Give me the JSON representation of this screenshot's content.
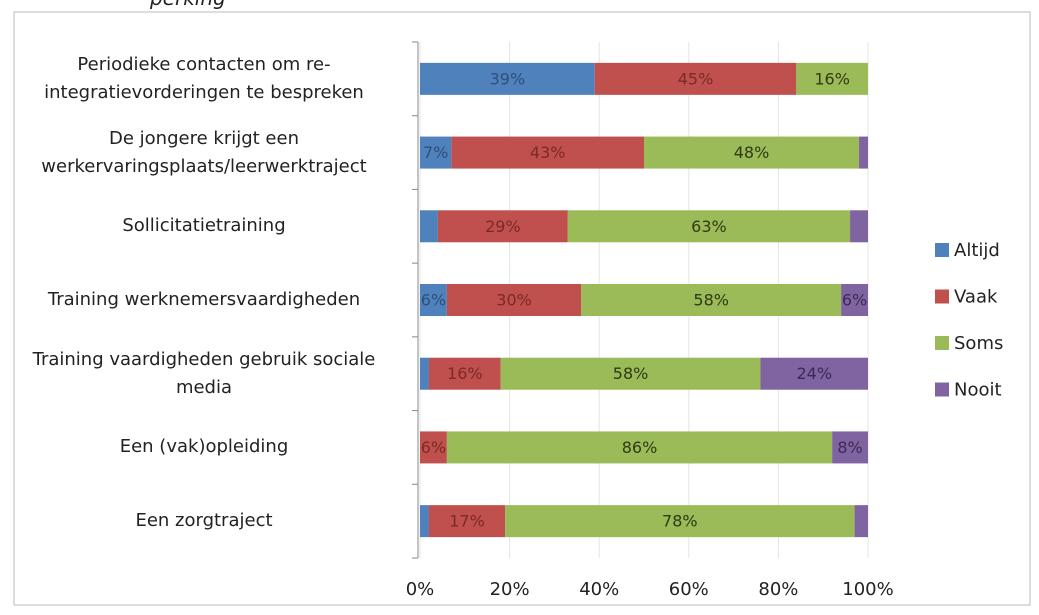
{
  "chart_data": {
    "type": "stacked-bar-horizontal",
    "title": "perking",
    "categories": [
      "Periodieke contacten om re-integratievorderingen te bespreken",
      "De jongere krijgt een werkervaringsplaats/leerwerktraject",
      "Sollicitatietraining",
      "Training werknemersvaardigheden",
      "Training vaardigheden gebruik sociale media",
      "Een (vak)opleiding",
      "Een zorgtraject"
    ],
    "series": [
      {
        "name": "Altijd",
        "color": "#4f81bd",
        "label_color": "#2f4f7a",
        "values": [
          39,
          7,
          4,
          6,
          2,
          0,
          2
        ],
        "value_labels": [
          "39%",
          "7%",
          null,
          "6%",
          null,
          null,
          null
        ]
      },
      {
        "name": "Vaak",
        "color": "#c0504d",
        "label_color": "#7a2a28",
        "values": [
          45,
          43,
          29,
          30,
          16,
          6,
          17
        ],
        "value_labels": [
          "45%",
          "43%",
          "29%",
          "30%",
          "16%",
          "6%",
          "17%"
        ]
      },
      {
        "name": "Soms",
        "color": "#9bbb59",
        "label_color": "#2f3a14",
        "values": [
          16,
          48,
          63,
          58,
          58,
          86,
          78
        ],
        "value_labels": [
          "16%",
          "48%",
          "63%",
          "58%",
          "58%",
          "86%",
          "78%"
        ]
      },
      {
        "name": "Nooit",
        "color": "#8064a2",
        "label_color": "#3a2a55",
        "values": [
          0,
          2,
          4,
          6,
          24,
          8,
          3
        ],
        "value_labels": [
          null,
          null,
          null,
          "6%",
          "24%",
          "8%",
          null
        ]
      }
    ],
    "xlim": [
      0,
      100
    ],
    "xticks": [
      {
        "value": 0,
        "label": "0%"
      },
      {
        "value": 20,
        "label": "20%"
      },
      {
        "value": 40,
        "label": "40%"
      },
      {
        "value": 60,
        "label": "60%"
      },
      {
        "value": 80,
        "label": "80%"
      },
      {
        "value": 100,
        "label": "100%"
      }
    ],
    "grid": true,
    "legend": "right"
  }
}
